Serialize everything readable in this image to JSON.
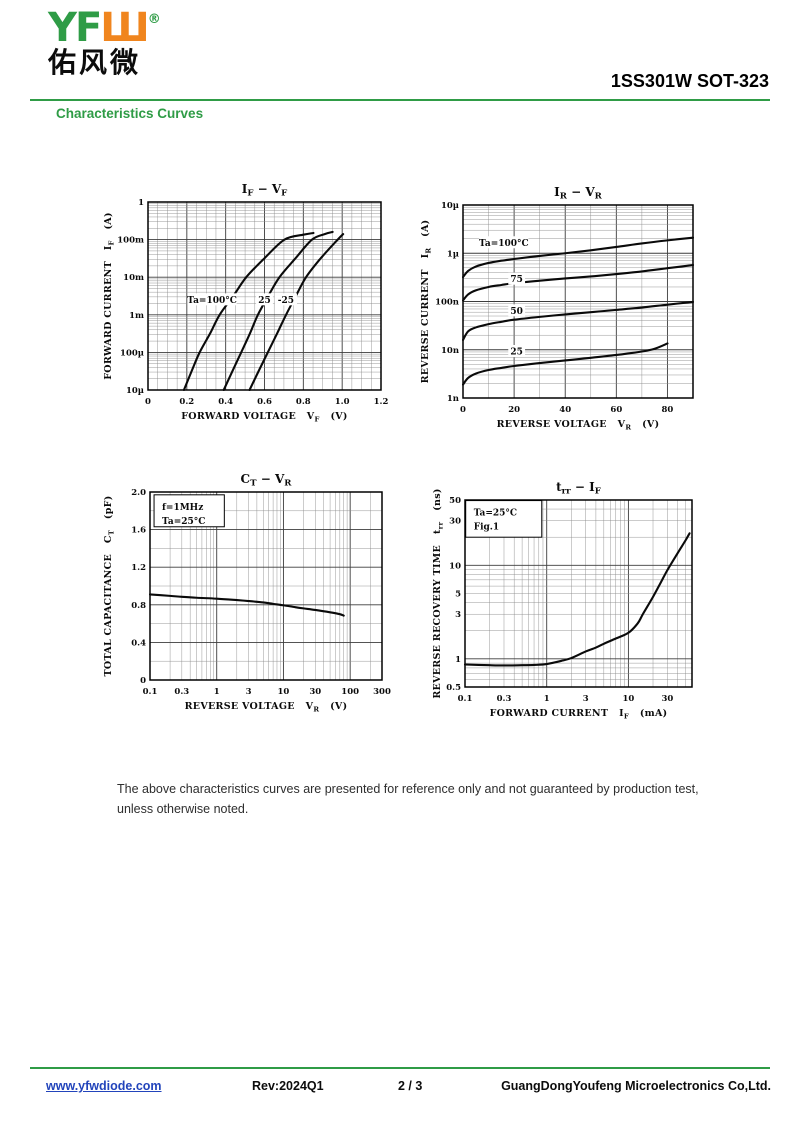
{
  "header": {
    "logo_text": "YF",
    "logo_mark": "Ш",
    "logo_reg": "®",
    "logo_cn": "佑风微",
    "product_title": "1SS301W SOT-323",
    "section_title": "Characteristics Curves",
    "accent_green": "#2f9c46",
    "logo_orange": "#f0851e"
  },
  "note": {
    "line1": "The above characteristics curves are presented for reference only and not guaranteed by production test,",
    "line2": "unless otherwise noted."
  },
  "footer": {
    "website": "www.yfwdiode.com",
    "rev": "Rev:2024Q1",
    "page": "2 / 3",
    "company": "GuangDongYoufeng Microelectronics Co,Ltd."
  },
  "chart_data": [
    {
      "id": "if_vf",
      "type": "line",
      "title": "I|F| − V|F|",
      "xlabel": "FORWARD VOLTAGE   V|F|   (V)",
      "ylabel": "FORWARD CURRENT   I|F|   (A)",
      "x_scale": "linear",
      "x_range": [
        0,
        1.2
      ],
      "x_minor": 0.05,
      "x_major": 0.2,
      "x_ticks": [
        {
          "v": 0,
          "label": "0"
        },
        {
          "v": 0.2,
          "label": "0.2"
        },
        {
          "v": 0.4,
          "label": "0.4"
        },
        {
          "v": 0.6,
          "label": "0.6"
        },
        {
          "v": 0.8,
          "label": "0.8"
        },
        {
          "v": 1.0,
          "label": "1.0"
        },
        {
          "v": 1.2,
          "label": "1.2"
        }
      ],
      "y_scale": "log",
      "y_range": [
        1e-05,
        1
      ],
      "y_ticks": [
        {
          "v": 1,
          "label": "1"
        },
        {
          "v": 0.1,
          "label": "100m"
        },
        {
          "v": 0.01,
          "label": "10m"
        },
        {
          "v": 0.001,
          "label": "1m"
        },
        {
          "v": 0.0001,
          "label": "100µ"
        },
        {
          "v": 1e-05,
          "label": "10µ"
        }
      ],
      "series": [
        {
          "name": "Ta=100°C",
          "points": [
            [
              0.185,
              1e-05
            ],
            [
              0.225,
              3.2e-05
            ],
            [
              0.266,
              0.0001
            ],
            [
              0.32,
              0.00032
            ],
            [
              0.369,
              0.001
            ],
            [
              0.44,
              0.0032
            ],
            [
              0.506,
              0.01
            ],
            [
              0.6,
              0.032
            ],
            [
              0.703,
              0.1
            ],
            [
              0.8,
              0.135
            ],
            [
              0.852,
              0.15
            ]
          ]
        },
        {
          "name": "25",
          "points": [
            [
              0.39,
              1e-05
            ],
            [
              0.435,
              3.2e-05
            ],
            [
              0.48,
              0.0001
            ],
            [
              0.525,
              0.00032
            ],
            [
              0.566,
              0.001
            ],
            [
              0.62,
              0.0032
            ],
            [
              0.677,
              0.01
            ],
            [
              0.76,
              0.032
            ],
            [
              0.845,
              0.1
            ],
            [
              0.91,
              0.14
            ],
            [
              0.951,
              0.16
            ]
          ]
        },
        {
          "name": "-25",
          "points": [
            [
              0.523,
              1e-05
            ],
            [
              0.57,
              3.2e-05
            ],
            [
              0.617,
              0.0001
            ],
            [
              0.665,
              0.00032
            ],
            [
              0.711,
              0.001
            ],
            [
              0.762,
              0.0032
            ],
            [
              0.814,
              0.01
            ],
            [
              0.89,
              0.032
            ],
            [
              0.977,
              0.1
            ],
            [
              1.005,
              0.14
            ]
          ]
        }
      ],
      "inline_labels": [
        {
          "text": "Ta=100°C",
          "x": 0.33,
          "y": 0.0025
        },
        {
          "text": "25",
          "x": 0.6,
          "y": 0.0025
        },
        {
          "text": "-25",
          "x": 0.71,
          "y": 0.0025
        }
      ]
    },
    {
      "id": "ir_vr",
      "type": "line",
      "title": "I|R| − V|R|",
      "xlabel": "REVERSE VOLTAGE   V|R|   (V)",
      "ylabel": "REVERSE CURRENT   I|R|   (A)",
      "x_scale": "linear",
      "x_range": [
        0,
        90
      ],
      "x_minor": 10,
      "x_major": 20,
      "x_ticks": [
        {
          "v": 0,
          "label": "0"
        },
        {
          "v": 20,
          "label": "20"
        },
        {
          "v": 40,
          "label": "40"
        },
        {
          "v": 60,
          "label": "60"
        },
        {
          "v": 80,
          "label": "80"
        }
      ],
      "y_scale": "log",
      "y_range": [
        1e-09,
        1e-05
      ],
      "y_ticks": [
        {
          "v": 1e-05,
          "label": "10µ"
        },
        {
          "v": 1e-06,
          "label": "1µ"
        },
        {
          "v": 1e-07,
          "label": "100n"
        },
        {
          "v": 1e-08,
          "label": "10n"
        },
        {
          "v": 1e-09,
          "label": "1n"
        }
      ],
      "series": [
        {
          "name": "Ta=100°C",
          "points": [
            [
              0,
              3.2e-07
            ],
            [
              2,
              4.3e-07
            ],
            [
              5,
              5.3e-07
            ],
            [
              10,
              6.3e-07
            ],
            [
              15,
              7e-07
            ],
            [
              20,
              7.6e-07
            ],
            [
              30,
              8.8e-07
            ],
            [
              40,
              1e-06
            ],
            [
              50,
              1.15e-06
            ],
            [
              60,
              1.35e-06
            ],
            [
              70,
              1.6e-06
            ],
            [
              80,
              1.85e-06
            ],
            [
              90,
              2.1e-06
            ]
          ]
        },
        {
          "name": "75",
          "points": [
            [
              0,
              1.05e-07
            ],
            [
              2,
              1.4e-07
            ],
            [
              5,
              1.7e-07
            ],
            [
              10,
              2e-07
            ],
            [
              15,
              2.2e-07
            ],
            [
              20,
              2.4e-07
            ],
            [
              30,
              2.7e-07
            ],
            [
              40,
              3e-07
            ],
            [
              50,
              3.3e-07
            ],
            [
              60,
              3.7e-07
            ],
            [
              70,
              4.2e-07
            ],
            [
              80,
              4.9e-07
            ],
            [
              90,
              5.7e-07
            ]
          ]
        },
        {
          "name": "50",
          "points": [
            [
              0,
              1.6e-08
            ],
            [
              2,
              2.4e-08
            ],
            [
              5,
              2.9e-08
            ],
            [
              10,
              3.4e-08
            ],
            [
              15,
              3.8e-08
            ],
            [
              20,
              4.2e-08
            ],
            [
              30,
              4.8e-08
            ],
            [
              40,
              5.4e-08
            ],
            [
              50,
              6e-08
            ],
            [
              60,
              6.7e-08
            ],
            [
              70,
              7.5e-08
            ],
            [
              80,
              8.6e-08
            ],
            [
              90,
              9.8e-08
            ]
          ]
        },
        {
          "name": "25",
          "points": [
            [
              0,
              1.9e-09
            ],
            [
              2,
              2.6e-09
            ],
            [
              5,
              3.2e-09
            ],
            [
              10,
              3.8e-09
            ],
            [
              15,
              4.2e-09
            ],
            [
              20,
              4.6e-09
            ],
            [
              30,
              5.3e-09
            ],
            [
              40,
              6e-09
            ],
            [
              50,
              6.8e-09
            ],
            [
              60,
              7.8e-09
            ],
            [
              70,
              9.2e-09
            ],
            [
              75,
              1.05e-08
            ],
            [
              80,
              1.35e-08
            ]
          ]
        }
      ],
      "inline_labels": [
        {
          "text": "Ta=100°C",
          "x": 16,
          "y": 1.65e-06
        },
        {
          "text": "75",
          "x": 21,
          "y": 2.9e-07
        },
        {
          "text": "50",
          "x": 21,
          "y": 6.4e-08
        },
        {
          "text": "25",
          "x": 21,
          "y": 9.2e-09
        }
      ]
    },
    {
      "id": "ct_vr",
      "type": "line",
      "title": "C|T| − V|R|",
      "xlabel": "REVERSE VOLTAGE   V|R|   (V)",
      "ylabel": "TOTAL CAPACITANCE   C|T|   (pF)",
      "x_scale": "log",
      "x_range": [
        0.1,
        300
      ],
      "x_ticks": [
        {
          "v": 0.1,
          "label": "0.1"
        },
        {
          "v": 0.3,
          "label": "0.3"
        },
        {
          "v": 1,
          "label": "1"
        },
        {
          "v": 3,
          "label": "3"
        },
        {
          "v": 10,
          "label": "10"
        },
        {
          "v": 30,
          "label": "30"
        },
        {
          "v": 100,
          "label": "100"
        },
        {
          "v": 300,
          "label": "300"
        }
      ],
      "y_scale": "linear",
      "y_range": [
        0,
        2.0
      ],
      "y_minor": 0.2,
      "y_major": 0.4,
      "y_ticks": [
        {
          "v": 0,
          "label": "0"
        },
        {
          "v": 0.4,
          "label": "0.4"
        },
        {
          "v": 0.8,
          "label": "0.8"
        },
        {
          "v": 1.2,
          "label": "1.2"
        },
        {
          "v": 1.6,
          "label": "1.6"
        },
        {
          "v": 2.0,
          "label": "2.0"
        }
      ],
      "annotation_box": {
        "lines": [
          "f=1MHz",
          "Ta=25°C"
        ],
        "x0": 0.115,
        "x1": 1.3,
        "y0": 1.63,
        "y1": 1.97
      },
      "series": [
        {
          "name": "CT",
          "points": [
            [
              0.1,
              0.91
            ],
            [
              0.2,
              0.895
            ],
            [
              0.3,
              0.885
            ],
            [
              0.5,
              0.875
            ],
            [
              1,
              0.865
            ],
            [
              2,
              0.85
            ],
            [
              3,
              0.84
            ],
            [
              5,
              0.825
            ],
            [
              7,
              0.81
            ],
            [
              10,
              0.795
            ],
            [
              15,
              0.775
            ],
            [
              20,
              0.762
            ],
            [
              30,
              0.745
            ],
            [
              50,
              0.72
            ],
            [
              70,
              0.7
            ],
            [
              80,
              0.685
            ]
          ]
        }
      ],
      "inline_labels": []
    },
    {
      "id": "trr_if",
      "type": "line",
      "title": "t|rr| − I|F|",
      "xlabel": "FORWARD CURRENT   I|F|   (mA)",
      "ylabel": "REVERSE RECOVERY TIME   t|rr|   (ns)",
      "x_scale": "log",
      "x_range": [
        0.1,
        60
      ],
      "x_ticks": [
        {
          "v": 0.1,
          "label": "0.1"
        },
        {
          "v": 0.3,
          "label": "0.3"
        },
        {
          "v": 1,
          "label": "1"
        },
        {
          "v": 3,
          "label": "3"
        },
        {
          "v": 10,
          "label": "10"
        },
        {
          "v": 30,
          "label": "30"
        }
      ],
      "y_scale": "log",
      "y_range": [
        0.5,
        50
      ],
      "y_ticks": [
        {
          "v": 50,
          "label": "50"
        },
        {
          "v": 30,
          "label": "30"
        },
        {
          "v": 10,
          "label": "10"
        },
        {
          "v": 5,
          "label": "5"
        },
        {
          "v": 3,
          "label": "3"
        },
        {
          "v": 1,
          "label": "1"
        },
        {
          "v": 0.5,
          "label": "0.5"
        }
      ],
      "annotation_box": {
        "lines": [
          "Ta=25°C",
          "Fig.1"
        ],
        "x0": 0.102,
        "x1": 0.87,
        "y0": 20,
        "y1": 49.3
      },
      "series": [
        {
          "name": "trr",
          "points": [
            [
              0.1,
              0.87
            ],
            [
              0.2,
              0.855
            ],
            [
              0.3,
              0.85
            ],
            [
              0.5,
              0.855
            ],
            [
              0.7,
              0.86
            ],
            [
              1,
              0.88
            ],
            [
              1.5,
              0.95
            ],
            [
              2,
              1.02
            ],
            [
              3,
              1.2
            ],
            [
              4,
              1.32
            ],
            [
              5,
              1.45
            ],
            [
              7,
              1.65
            ],
            [
              10,
              1.9
            ],
            [
              13,
              2.4
            ],
            [
              15,
              3.0
            ],
            [
              20,
              4.6
            ],
            [
              25,
              6.6
            ],
            [
              30,
              8.9
            ],
            [
              40,
              13.5
            ],
            [
              50,
              18.5
            ],
            [
              56,
              22
            ]
          ]
        }
      ],
      "inline_labels": []
    }
  ]
}
